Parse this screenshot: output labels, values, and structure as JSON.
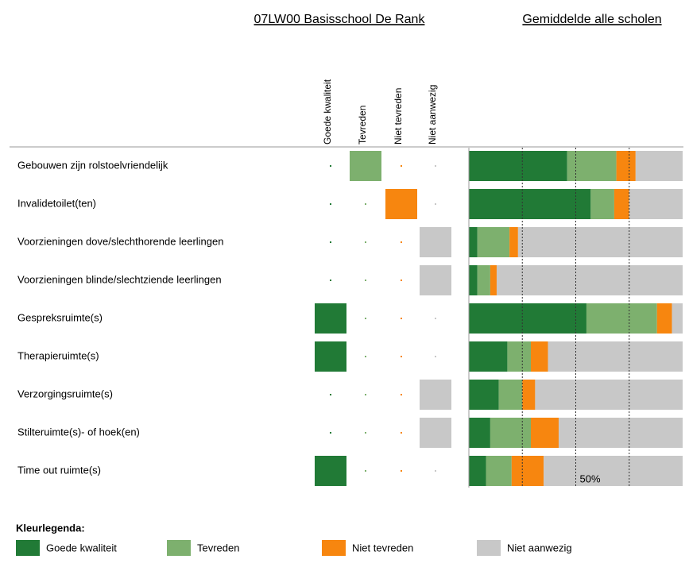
{
  "chart_data": {
    "type": "stacked-barh",
    "school_title": "07LW00 Basisschool De Rank",
    "average_title": "Gemiddelde alle scholen",
    "legend_title": "Kleurlegenda:",
    "categories": [
      "Gebouwen zijn rolstoelvriendelijk",
      "Invalidetoilet(ten)",
      "Voorzieningen dove/slechthorende leerlingen",
      "Voorzieningen blinde/slechtziende leerlingen",
      "Gespreksruimte(s)",
      "Therapieruimte(s)",
      "Verzorgingsruimte(s)",
      "Stilteruimte(s)- of hoek(en)",
      "Time out ruimte(s)"
    ],
    "column_headers": [
      "Goede kwaliteit",
      "Tevreden",
      "Niet tevreden",
      "Niet aanwezig"
    ],
    "legend_labels": [
      "Goede kwaliteit",
      "Tevreden",
      "Niet tevreden",
      "Niet aanwezig"
    ],
    "school": [
      [
        0,
        1,
        0,
        0
      ],
      [
        0,
        0,
        1,
        0
      ],
      [
        0,
        0,
        0,
        1
      ],
      [
        0,
        0,
        0,
        1
      ],
      [
        1,
        0,
        0,
        0
      ],
      [
        1,
        0,
        0,
        0
      ],
      [
        0,
        0,
        0,
        1
      ],
      [
        0,
        0,
        0,
        1
      ],
      [
        1,
        0,
        0,
        0
      ]
    ],
    "series": [
      {
        "name": "Goede kwaliteit",
        "color": "#217a36",
        "values": [
          46,
          57,
          4,
          4,
          55,
          18,
          14,
          10,
          8
        ]
      },
      {
        "name": "Tevreden",
        "color": "#7db06e",
        "values": [
          23,
          11,
          15,
          6,
          33,
          11,
          11,
          19,
          12
        ]
      },
      {
        "name": "Niet tevreden",
        "color": "#f7860f",
        "values": [
          9,
          7,
          4,
          3,
          7,
          8,
          6,
          13,
          15
        ]
      },
      {
        "name": "Niet aanwezig",
        "color": "#c8c8c8",
        "values": [
          22,
          25,
          77,
          87,
          5,
          63,
          69,
          58,
          65
        ]
      }
    ],
    "xlim": [
      0,
      100
    ],
    "gridlines": [
      25,
      50,
      75
    ],
    "xticks": [
      {
        "value": 50,
        "label": "50%"
      }
    ]
  }
}
